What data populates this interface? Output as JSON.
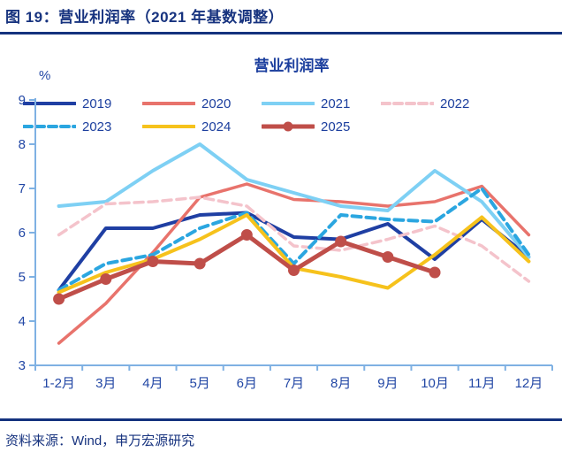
{
  "header": {
    "title": "图 19：营业利润率（2021 年基数调整）"
  },
  "footer": {
    "source": "资料来源：Wind，申万宏源研究"
  },
  "chart": {
    "title": "营业利润率",
    "unit_label": "%",
    "axis_color": "#7FB1E3",
    "tick_text_color": "#2247A5",
    "title_color": "#1C3F9E"
  },
  "chart_data": {
    "type": "line",
    "title": "营业利润率",
    "ylabel": "%",
    "xlabel": "",
    "ylim": [
      3,
      9
    ],
    "yticks": [
      3,
      4,
      5,
      6,
      7,
      8,
      9
    ],
    "grid": false,
    "legend_position": "top",
    "categories": [
      "1-2月",
      "3月",
      "4月",
      "5月",
      "6月",
      "7月",
      "8月",
      "9月",
      "10月",
      "11月",
      "12月"
    ],
    "series": [
      {
        "name": "2019",
        "color": "#1F3FA3",
        "style": "solid",
        "width": 4,
        "values": [
          4.7,
          6.1,
          6.1,
          6.4,
          6.45,
          5.9,
          5.85,
          6.2,
          5.4,
          6.3,
          5.45
        ]
      },
      {
        "name": "2020",
        "color": "#E8736C",
        "style": "solid",
        "width": 3.5,
        "values": [
          3.5,
          4.4,
          5.55,
          6.8,
          7.1,
          6.75,
          6.7,
          6.6,
          6.7,
          7.05,
          5.95
        ]
      },
      {
        "name": "2021",
        "color": "#7ED0F4",
        "style": "solid",
        "width": 4,
        "values": [
          6.6,
          6.7,
          7.4,
          8.0,
          7.2,
          6.9,
          6.6,
          6.5,
          7.4,
          6.7,
          5.45
        ]
      },
      {
        "name": "2022",
        "color": "#F4C3CB",
        "style": "dashed",
        "width": 3.5,
        "values": [
          5.95,
          6.65,
          6.7,
          6.8,
          6.6,
          5.7,
          5.6,
          5.85,
          6.15,
          5.7,
          4.9
        ]
      },
      {
        "name": "2023",
        "color": "#2BA6E0",
        "style": "dashed",
        "width": 4,
        "values": [
          4.7,
          5.3,
          5.5,
          6.1,
          6.45,
          5.3,
          6.4,
          6.3,
          6.25,
          7.0,
          5.5
        ]
      },
      {
        "name": "2024",
        "color": "#F6C21C",
        "style": "solid",
        "width": 4,
        "values": [
          4.65,
          5.1,
          5.4,
          5.85,
          6.4,
          5.2,
          5.0,
          4.75,
          5.5,
          6.35,
          5.35
        ]
      },
      {
        "name": "2025",
        "color": "#BF4E49",
        "style": "solid-marker",
        "width": 5,
        "values": [
          4.5,
          4.95,
          5.35,
          5.3,
          5.95,
          5.15,
          5.8,
          5.45,
          5.1
        ]
      }
    ]
  }
}
